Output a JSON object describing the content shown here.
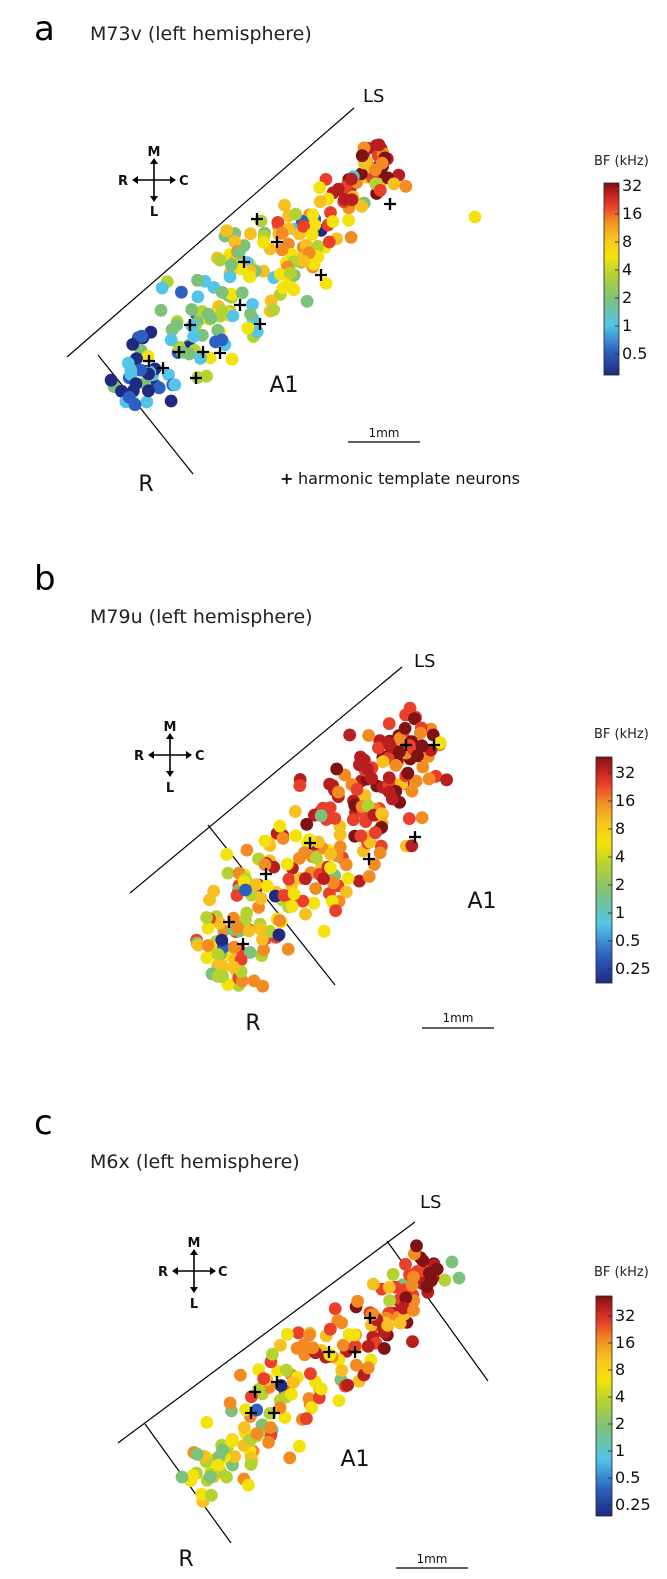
{
  "panels": [
    {
      "letter": "a",
      "title": "M73v (left hemisphere)",
      "ls_label": "LS",
      "area_labels": [
        "A1",
        "R"
      ],
      "scale_bar": "1mm",
      "colorbar_title": "BF (kHz)",
      "colorbar_ticks": [
        "32",
        "16",
        "8",
        "4",
        "2",
        "1",
        "0.5"
      ],
      "compass": {
        "m": "M",
        "r": "R",
        "c": "C",
        "l": "L"
      },
      "legend": {
        "symbol": "+",
        "text": "harmonic template neurons"
      }
    },
    {
      "letter": "b",
      "title": "M79u (left hemisphere)",
      "ls_label": "LS",
      "area_labels": [
        "A1",
        "R"
      ],
      "scale_bar": "1mm",
      "colorbar_title": "BF (kHz)",
      "colorbar_ticks": [
        "32",
        "16",
        "8",
        "4",
        "2",
        "1",
        "0.5",
        "0.25"
      ],
      "compass": {
        "m": "M",
        "r": "R",
        "c": "C",
        "l": "L"
      }
    },
    {
      "letter": "c",
      "title": "M6x (left hemisphere)",
      "ls_label": "LS",
      "area_labels": [
        "A1",
        "R"
      ],
      "scale_bar": "1mm",
      "colorbar_title": "BF (kHz)",
      "colorbar_ticks": [
        "32",
        "16",
        "8",
        "4",
        "2",
        "1",
        "0.5",
        "0.25"
      ],
      "compass": {
        "m": "M",
        "r": "R",
        "c": "C",
        "l": "L"
      }
    }
  ],
  "colors": {
    "colormap": [
      "#1f2a80",
      "#2c5fbf",
      "#54c5e6",
      "#7dc27a",
      "#b5d233",
      "#f4e30a",
      "#f7c021",
      "#f28c22",
      "#e8402a",
      "#b81e1e",
      "#7f1212"
    ]
  }
}
